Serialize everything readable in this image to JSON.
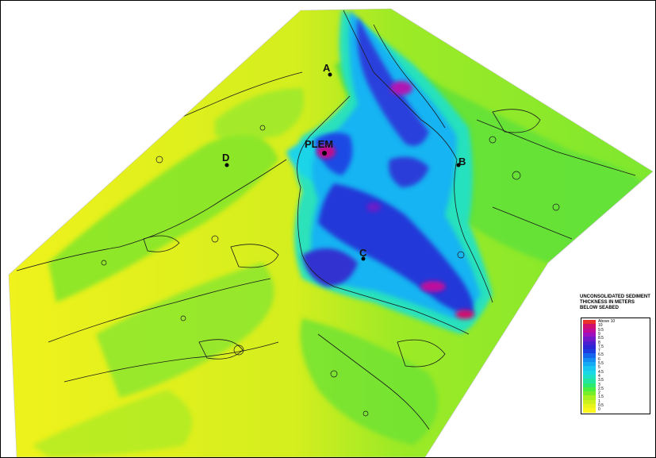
{
  "sites": [
    {
      "label": "A"
    },
    {
      "label": "PLEM"
    },
    {
      "label": "D"
    },
    {
      "label": "B"
    },
    {
      "label": "C"
    }
  ],
  "legend": {
    "title": "UNCONSOLIDATED SEDIMENT THICKNESS IN METERS BELOW SEABED",
    "entries": [
      {
        "label": "Above 10",
        "color": "#e8322a"
      },
      {
        "label": "10",
        "color": "#d0106e"
      },
      {
        "label": "9.5",
        "color": "#c00a9a"
      },
      {
        "label": "9",
        "color": "#9d10c0"
      },
      {
        "label": "8.5",
        "color": "#7318c8"
      },
      {
        "label": "8",
        "color": "#4a1ed0"
      },
      {
        "label": "7.5",
        "color": "#2a26d6"
      },
      {
        "label": "7",
        "color": "#1c3ce0"
      },
      {
        "label": "6.5",
        "color": "#1466ec"
      },
      {
        "label": "6",
        "color": "#138cf2"
      },
      {
        "label": "5.5",
        "color": "#16aaf4"
      },
      {
        "label": "5",
        "color": "#19c6f0"
      },
      {
        "label": "4.5",
        "color": "#1ad8e6"
      },
      {
        "label": "4",
        "color": "#1de0c8"
      },
      {
        "label": "3.5",
        "color": "#22e6a0"
      },
      {
        "label": "3",
        "color": "#2cea70"
      },
      {
        "label": "2.5",
        "color": "#4aee40"
      },
      {
        "label": "2",
        "color": "#78ee2a"
      },
      {
        "label": "1.5",
        "color": "#a8f020"
      },
      {
        "label": "1",
        "color": "#ccf01c"
      },
      {
        "label": "0.5",
        "color": "#e8f41a"
      },
      {
        "label": "0",
        "color": "#fbf71c"
      }
    ]
  }
}
